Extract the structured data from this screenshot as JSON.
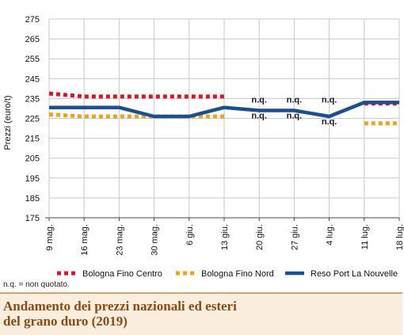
{
  "note": "n.q. = non quotato.",
  "caption": {
    "line1": "Andamento dei prezzi nazionali ed esteri",
    "line2": "del grano duro (2019)"
  },
  "chart_data": {
    "type": "line",
    "title": "",
    "xlabel": "",
    "ylabel": "Prezzi (euro/t)",
    "ylim": [
      175,
      275
    ],
    "yticks": [
      175,
      185,
      195,
      205,
      215,
      225,
      235,
      245,
      255,
      265,
      275
    ],
    "grid": true,
    "legend_position": "bottom",
    "categories": [
      "9 mag.",
      "16 mag.",
      "23 mag.",
      "30 mag.",
      "6 giu.",
      "13 giu.",
      "20 giu.",
      "27 giu.",
      "4 lug.",
      "11 lug.",
      "18 lug."
    ],
    "series": [
      {
        "name": "Bologna Fino Centro",
        "color": "#d4182b",
        "style": "dotted",
        "values": [
          237.5,
          236,
          236,
          236,
          236,
          236,
          null,
          null,
          null,
          232.5,
          232.5
        ]
      },
      {
        "name": "Bologna Fino Nord",
        "color": "#f0a21e",
        "style": "dotted",
        "values": [
          227,
          226,
          226,
          226,
          226,
          226,
          null,
          null,
          null,
          222.5,
          222.5
        ]
      },
      {
        "name": "Reso Port La Nouvelle",
        "color": "#1c4f8f",
        "style": "solid",
        "values": [
          230.5,
          230.5,
          230.5,
          226,
          226,
          230.5,
          229,
          229,
          226,
          233,
          233
        ]
      }
    ],
    "annotations": [
      {
        "text": "n.q.",
        "category": "20 giu.",
        "value": 233
      },
      {
        "text": "n.q.",
        "category": "27 giu.",
        "value": 233
      },
      {
        "text": "n.q.",
        "category": "4 lug.",
        "value": 233
      },
      {
        "text": "n.q.",
        "category": "20 giu.",
        "value": 225
      },
      {
        "text": "n.q.",
        "category": "27 giu.",
        "value": 225
      },
      {
        "text": "n.q.",
        "category": "4 lug.",
        "value": 222
      }
    ]
  }
}
